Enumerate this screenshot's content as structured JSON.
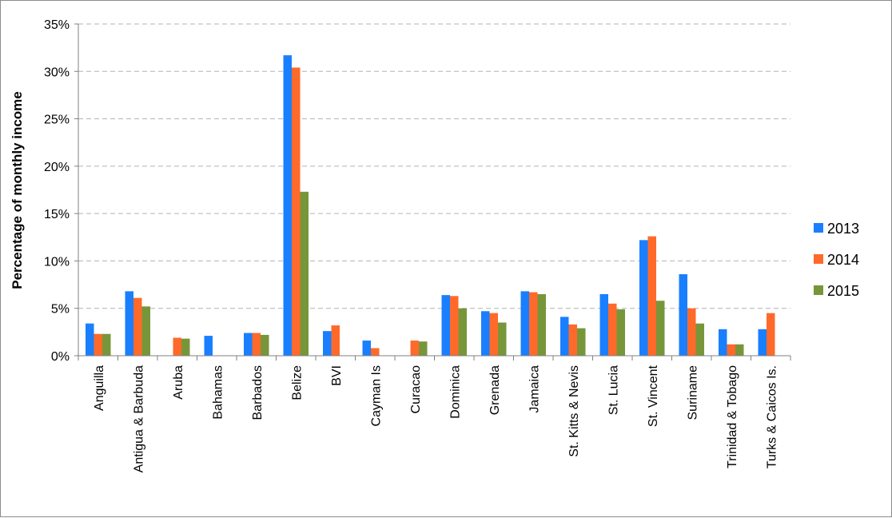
{
  "chart_data": {
    "type": "bar",
    "title": "",
    "xlabel": "",
    "ylabel": "Percentage of monthly income",
    "ylim": [
      0,
      35
    ],
    "y_ticks": [
      "0%",
      "5%",
      "10%",
      "15%",
      "20%",
      "25%",
      "30%",
      "35%"
    ],
    "y_tick_values": [
      0,
      5,
      10,
      15,
      20,
      25,
      30,
      35
    ],
    "grid": "horizontal dashed",
    "legend_position": "right",
    "categories": [
      "Anguilla",
      "Antigua & Barbuda",
      "Aruba",
      "Bahamas",
      "Barbados",
      "Belize",
      "BVI",
      "Cayman Is",
      "Curacao",
      "Dominica",
      "Grenada",
      "Jamaica",
      "St. Kitts & Nevis",
      "St. Lucia",
      "St. Vincent",
      "Suriname",
      "Trinidad & Tobago",
      "Turks & Caicos Is."
    ],
    "series": [
      {
        "name": "2013",
        "color": "#1a7fff",
        "values": [
          3.4,
          6.8,
          null,
          2.1,
          2.4,
          31.7,
          2.6,
          1.6,
          null,
          6.4,
          4.7,
          6.8,
          4.1,
          6.5,
          12.2,
          8.6,
          2.8,
          2.8
        ]
      },
      {
        "name": "2014",
        "color": "#ff6a2b",
        "values": [
          2.3,
          6.1,
          1.9,
          null,
          2.4,
          30.4,
          3.2,
          0.8,
          1.6,
          6.3,
          4.5,
          6.7,
          3.3,
          5.5,
          12.6,
          5.0,
          1.2,
          4.5
        ]
      },
      {
        "name": "2015",
        "color": "#77963a",
        "values": [
          2.3,
          5.2,
          1.8,
          null,
          2.2,
          17.3,
          null,
          null,
          1.5,
          5.0,
          3.5,
          6.5,
          2.9,
          4.9,
          5.8,
          3.4,
          1.2,
          null
        ]
      }
    ]
  }
}
